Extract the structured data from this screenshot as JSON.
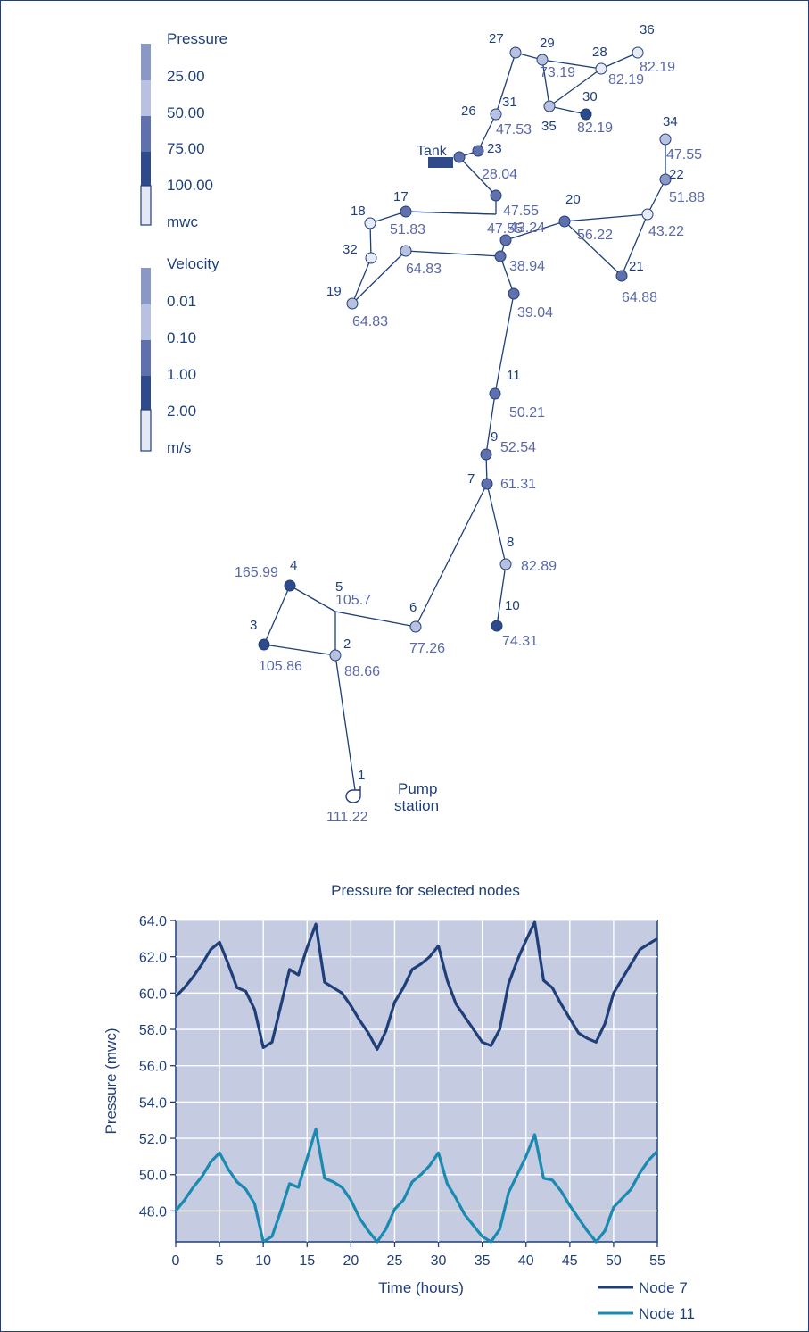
{
  "legend": {
    "pressure": {
      "title": "Pressure",
      "levels": [
        "25.00",
        "50.00",
        "75.00",
        "100.00"
      ],
      "unit": "mwc",
      "colors": [
        "#8a98c6",
        "#b8c2e0",
        "#6070ad",
        "#2e4a8a",
        "#e4e8f5"
      ]
    },
    "velocity": {
      "title": "Velocity",
      "levels": [
        "0.01",
        "0.10",
        "1.00",
        "2.00"
      ],
      "unit": "m/s",
      "colors": [
        "#8a98c6",
        "#b8c2e0",
        "#6070ad",
        "#2e4a8a",
        "#e4e8f5"
      ]
    }
  },
  "network": {
    "colors": {
      "light": "#e8ecf7",
      "pale": "#b8c2e0",
      "mid": "#8a98c6",
      "medium": "#6070ad",
      "dark": "#2e4a8a",
      "line": "#1f3f7a",
      "value": "#5a68a8",
      "id": "#1f3f7a"
    },
    "tank_label": "Tank",
    "pump_label_1": "Pump",
    "pump_label_2": "station",
    "nodes": [
      {
        "id": "1",
        "value": "111.22",
        "shade": "pump"
      },
      {
        "id": "2",
        "value": "88.66",
        "shade": "pale"
      },
      {
        "id": "3",
        "value": "105.86",
        "shade": "dark"
      },
      {
        "id": "4",
        "value": "165.99",
        "shade": "dark"
      },
      {
        "id": "5",
        "value": "105.7",
        "shade": "none"
      },
      {
        "id": "6",
        "value": "77.26",
        "shade": "pale"
      },
      {
        "id": "7",
        "value": "61.31",
        "shade": "medium"
      },
      {
        "id": "8",
        "value": "82.89",
        "shade": "pale"
      },
      {
        "id": "9",
        "value": "52.54",
        "shade": "medium"
      },
      {
        "id": "10",
        "value": "74.31",
        "shade": "dark"
      },
      {
        "id": "11",
        "value": "50.21",
        "shade": "medium"
      },
      {
        "id": "",
        "value": "39.04",
        "shade": "medium"
      },
      {
        "id": "",
        "value": "38.94",
        "shade": "medium"
      },
      {
        "id": "",
        "value": "43.24",
        "shade": "medium"
      },
      {
        "id": "",
        "value": "47.55",
        "shade": "medium"
      },
      {
        "id": "",
        "value": "47.55",
        "shade": "none"
      },
      {
        "id": "17",
        "value": "51.83",
        "shade": "medium"
      },
      {
        "id": "18",
        "value": "",
        "shade": "light"
      },
      {
        "id": "19",
        "value": "64.83",
        "shade": "pale"
      },
      {
        "id": "",
        "value": "64.83",
        "shade": "pale"
      },
      {
        "id": "20",
        "value": "56.22",
        "shade": "medium"
      },
      {
        "id": "21",
        "value": "64.88",
        "shade": "medium"
      },
      {
        "id": "",
        "value": "43.22",
        "shade": "light"
      },
      {
        "id": "22",
        "value": "51.88",
        "shade": "mid"
      },
      {
        "id": "23",
        "value": "28.04",
        "shade": "medium"
      },
      {
        "id": "",
        "value": "",
        "shade": "medium"
      },
      {
        "id": "26",
        "value": "",
        "shade": "pale"
      },
      {
        "id": "27",
        "value": "",
        "shade": "pale"
      },
      {
        "id": "28",
        "value": "82.19",
        "shade": "light"
      },
      {
        "id": "29",
        "value": "73.19",
        "shade": "pale"
      },
      {
        "id": "30",
        "value": "82.19",
        "shade": "dark"
      },
      {
        "id": "31",
        "value": "47.53",
        "shade": "none"
      },
      {
        "id": "32",
        "value": "",
        "shade": "light"
      },
      {
        "id": "34",
        "value": "47.55",
        "shade": "pale"
      },
      {
        "id": "35",
        "value": "",
        "shade": "pale"
      },
      {
        "id": "36",
        "value": "82.19",
        "shade": "light"
      }
    ]
  },
  "chart_data": {
    "type": "line",
    "title": "Pressure for selected nodes",
    "xlabel": "Time (hours)",
    "ylabel": "Pressure (mwc)",
    "y_ticks": [
      "64.0",
      "62.0",
      "60.0",
      "58.0",
      "56.0",
      "54.0",
      "52.0",
      "50.0",
      "48.0"
    ],
    "x_ticks": [
      "0",
      "5",
      "10",
      "15",
      "20",
      "25",
      "30",
      "35",
      "40",
      "45",
      "50",
      "55"
    ],
    "ylim": [
      46.3,
      64.0
    ],
    "x_count": 55,
    "grid": true,
    "legend_position": "bottom-right",
    "background": "#c5cbe0",
    "series": [
      {
        "name": "Node 7",
        "color": "#1f3f7a",
        "points": [
          [
            0,
            59.8
          ],
          [
            1,
            60.3
          ],
          [
            2,
            60.9
          ],
          [
            3,
            61.6
          ],
          [
            4,
            62.4
          ],
          [
            5,
            62.8
          ],
          [
            6,
            61.6
          ],
          [
            7,
            60.3
          ],
          [
            8,
            60.1
          ],
          [
            9,
            59.1
          ],
          [
            10,
            57.0
          ],
          [
            11,
            57.3
          ],
          [
            12,
            59.3
          ],
          [
            13,
            61.3
          ],
          [
            14,
            61.0
          ],
          [
            15,
            62.5
          ],
          [
            16,
            63.8
          ],
          [
            17,
            60.6
          ],
          [
            18,
            60.3
          ],
          [
            19,
            60.0
          ],
          [
            20,
            59.3
          ],
          [
            21,
            58.5
          ],
          [
            22,
            57.8
          ],
          [
            23,
            56.9
          ],
          [
            24,
            57.9
          ],
          [
            25,
            59.5
          ],
          [
            26,
            60.3
          ],
          [
            27,
            61.3
          ],
          [
            28,
            61.6
          ],
          [
            29,
            62.0
          ],
          [
            30,
            62.6
          ],
          [
            31,
            60.7
          ],
          [
            32,
            59.4
          ],
          [
            33,
            58.7
          ],
          [
            34,
            58.0
          ],
          [
            35,
            57.3
          ],
          [
            36,
            57.1
          ],
          [
            37,
            58.0
          ],
          [
            38,
            60.5
          ],
          [
            39,
            61.8
          ],
          [
            40,
            62.9
          ],
          [
            41,
            63.9
          ],
          [
            42,
            60.7
          ],
          [
            43,
            60.3
          ],
          [
            44,
            59.4
          ],
          [
            45,
            58.6
          ],
          [
            46,
            57.8
          ],
          [
            47,
            57.5
          ],
          [
            48,
            57.3
          ],
          [
            49,
            58.3
          ],
          [
            50,
            60.0
          ],
          [
            51,
            60.8
          ],
          [
            52,
            61.6
          ],
          [
            53,
            62.4
          ],
          [
            54,
            62.7
          ],
          [
            55,
            63.0
          ]
        ]
      },
      {
        "name": "Node 11",
        "color": "#1a8ab0",
        "points": [
          [
            0,
            48.0
          ],
          [
            1,
            48.6
          ],
          [
            2,
            49.3
          ],
          [
            3,
            49.9
          ],
          [
            4,
            50.7
          ],
          [
            5,
            51.2
          ],
          [
            6,
            50.3
          ],
          [
            7,
            49.6
          ],
          [
            8,
            49.2
          ],
          [
            9,
            48.4
          ],
          [
            10,
            46.3
          ],
          [
            11,
            46.6
          ],
          [
            12,
            48.0
          ],
          [
            13,
            49.5
          ],
          [
            14,
            49.3
          ],
          [
            15,
            50.9
          ],
          [
            16,
            52.5
          ],
          [
            17,
            49.8
          ],
          [
            18,
            49.6
          ],
          [
            19,
            49.3
          ],
          [
            20,
            48.6
          ],
          [
            21,
            47.6
          ],
          [
            22,
            46.9
          ],
          [
            23,
            46.3
          ],
          [
            24,
            47.0
          ],
          [
            25,
            48.1
          ],
          [
            26,
            48.6
          ],
          [
            27,
            49.6
          ],
          [
            28,
            50.0
          ],
          [
            29,
            50.5
          ],
          [
            30,
            51.2
          ],
          [
            31,
            49.5
          ],
          [
            32,
            48.7
          ],
          [
            33,
            47.8
          ],
          [
            34,
            47.2
          ],
          [
            35,
            46.6
          ],
          [
            36,
            46.3
          ],
          [
            37,
            47.0
          ],
          [
            38,
            49.0
          ],
          [
            39,
            50.0
          ],
          [
            40,
            51.0
          ],
          [
            41,
            52.2
          ],
          [
            42,
            49.8
          ],
          [
            43,
            49.7
          ],
          [
            44,
            49.1
          ],
          [
            45,
            48.3
          ],
          [
            46,
            47.6
          ],
          [
            47,
            46.9
          ],
          [
            48,
            46.3
          ],
          [
            49,
            46.9
          ],
          [
            50,
            48.2
          ],
          [
            51,
            48.7
          ],
          [
            52,
            49.2
          ],
          [
            53,
            50.1
          ],
          [
            54,
            50.8
          ],
          [
            55,
            51.3
          ]
        ]
      }
    ]
  }
}
